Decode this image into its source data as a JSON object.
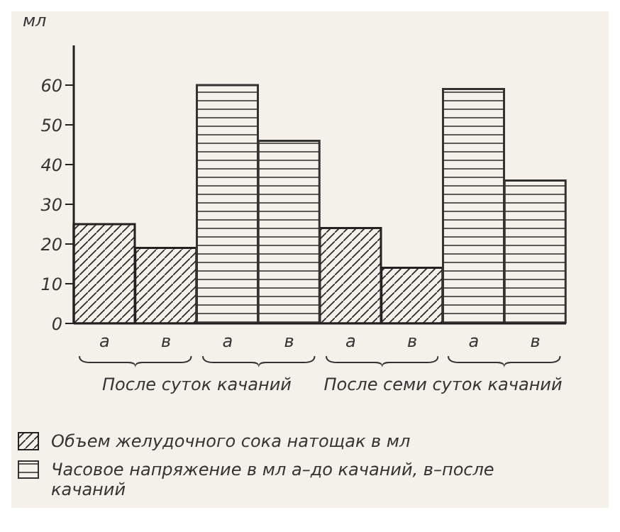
{
  "chart_data": {
    "type": "bar",
    "ylabel": "мл",
    "categories": [
      "а",
      "в",
      "а",
      "в",
      "а",
      "в",
      "а",
      "в"
    ],
    "stacked": true,
    "series": [
      {
        "name": "Объем желудочного сока натощак в мл",
        "color": "#222222",
        "values": [
          25,
          19,
          null,
          null,
          24,
          14,
          null,
          null
        ]
      },
      {
        "name": "Часовое напряжение в мл а–до качаний, в–после качаний",
        "color": "#333333",
        "values": [
          null,
          null,
          60,
          46,
          null,
          null,
          59,
          36
        ]
      }
    ],
    "ylim": [
      0,
      70
    ],
    "yticks": [
      0,
      10,
      20,
      30,
      40,
      50,
      60
    ],
    "grid": false,
    "legend": "bottom",
    "annotations": [
      "После суток качаний",
      "После семи суток качаний"
    ]
  }
}
